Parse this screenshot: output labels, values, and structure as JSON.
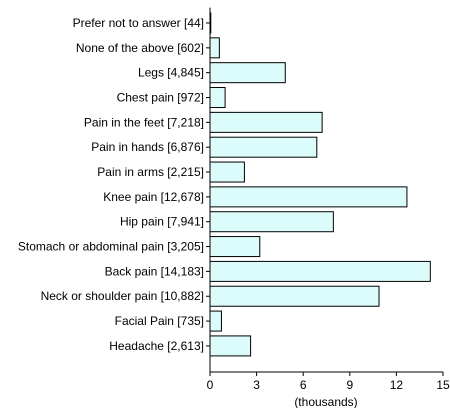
{
  "chart_data": {
    "type": "bar",
    "orientation": "horizontal",
    "categories": [
      "Prefer not to answer [44]",
      "None of the above [602]",
      "Legs [4,845]",
      "Chest pain [972]",
      "Pain in the feet [7,218]",
      "Pain in hands [6,876]",
      "Pain in arms [2,215]",
      "Knee pain [12,678]",
      "Hip pain [7,941]",
      "Stomach or abdominal pain [3,205]",
      "Back pain [14,183]",
      "Neck or shoulder pain [10,882]",
      "Facial Pain [735]",
      "Headache [2,613]"
    ],
    "values": [
      44,
      602,
      4845,
      972,
      7218,
      6876,
      2215,
      12678,
      7941,
      3205,
      14183,
      10882,
      735,
      2613
    ],
    "xlabel": "(thousands)",
    "ylabel": "",
    "xlim": [
      0,
      15000
    ],
    "xticks": [
      0,
      3000,
      6000,
      9000,
      12000,
      15000
    ],
    "xtick_labels": [
      "0",
      "3",
      "6",
      "9",
      "12",
      "15"
    ],
    "grid": false,
    "bar_fill": "#dcfcfc",
    "bar_stroke": "#000000"
  }
}
